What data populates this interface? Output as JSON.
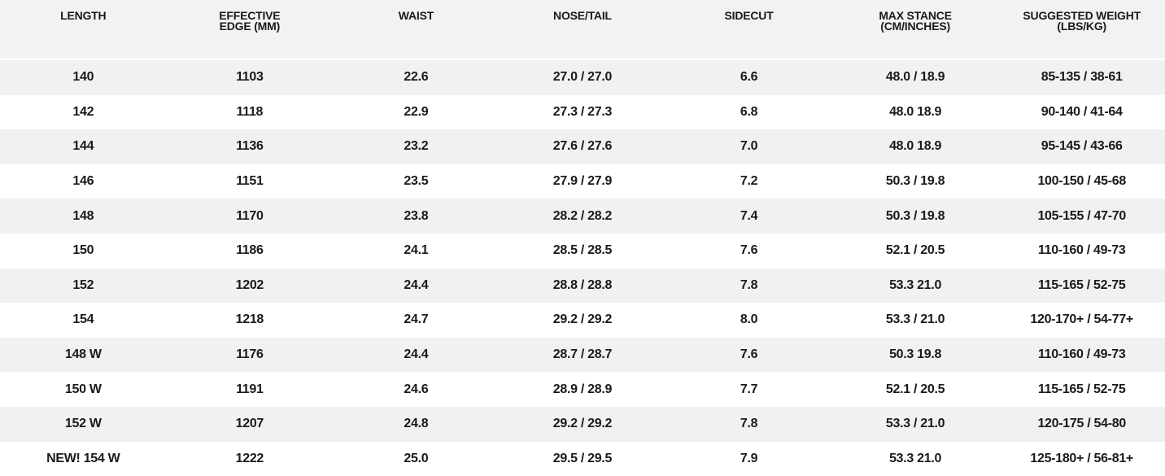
{
  "table": {
    "headers": [
      [
        "LENGTH"
      ],
      [
        "EFFECTIVE",
        "EDGE (MM)"
      ],
      [
        "WAIST"
      ],
      [
        "NOSE/TAIL"
      ],
      [
        "SIDECUT"
      ],
      [
        "MAX STANCE",
        "(CM/INCHES)"
      ],
      [
        "SUGGESTED WEIGHT",
        "(LBS/KG)"
      ]
    ],
    "rows": [
      [
        "140",
        "1103",
        "22.6",
        "27.0 / 27.0",
        "6.6",
        "48.0 / 18.9",
        "85-135 / 38-61"
      ],
      [
        "142",
        "1118",
        "22.9",
        "27.3 / 27.3",
        "6.8",
        "48.0 18.9",
        "90-140 / 41-64"
      ],
      [
        "144",
        "1136",
        "23.2",
        "27.6 / 27.6",
        "7.0",
        "48.0 18.9",
        "95-145 / 43-66"
      ],
      [
        "146",
        "1151",
        "23.5",
        "27.9 / 27.9",
        "7.2",
        "50.3 / 19.8",
        "100-150 / 45-68"
      ],
      [
        "148",
        "1170",
        "23.8",
        "28.2 / 28.2",
        "7.4",
        "50.3 / 19.8",
        "105-155 / 47-70"
      ],
      [
        "150",
        "1186",
        "24.1",
        "28.5 / 28.5",
        "7.6",
        "52.1 / 20.5",
        "110-160 / 49-73"
      ],
      [
        "152",
        "1202",
        "24.4",
        "28.8 / 28.8",
        "7.8",
        "53.3 21.0",
        "115-165 / 52-75"
      ],
      [
        "154",
        "1218",
        "24.7",
        "29.2 / 29.2",
        "8.0",
        "53.3 / 21.0",
        "120-170+ / 54-77+"
      ],
      [
        "148 W",
        "1176",
        "24.4",
        "28.7 / 28.7",
        "7.6",
        "50.3 19.8",
        "110-160 / 49-73"
      ],
      [
        "150 W",
        "1191",
        "24.6",
        "28.9 / 28.9",
        "7.7",
        "52.1 / 20.5",
        "115-165 / 52-75"
      ],
      [
        "152 W",
        "1207",
        "24.8",
        "29.2 / 29.2",
        "7.8",
        "53.3 / 21.0",
        "120-175 / 54-80"
      ],
      [
        "NEW! 154 W",
        "1222",
        "25.0",
        "29.5 / 29.5",
        "7.9",
        "53.3 21.0",
        "125-180+ / 56-81+"
      ]
    ]
  }
}
